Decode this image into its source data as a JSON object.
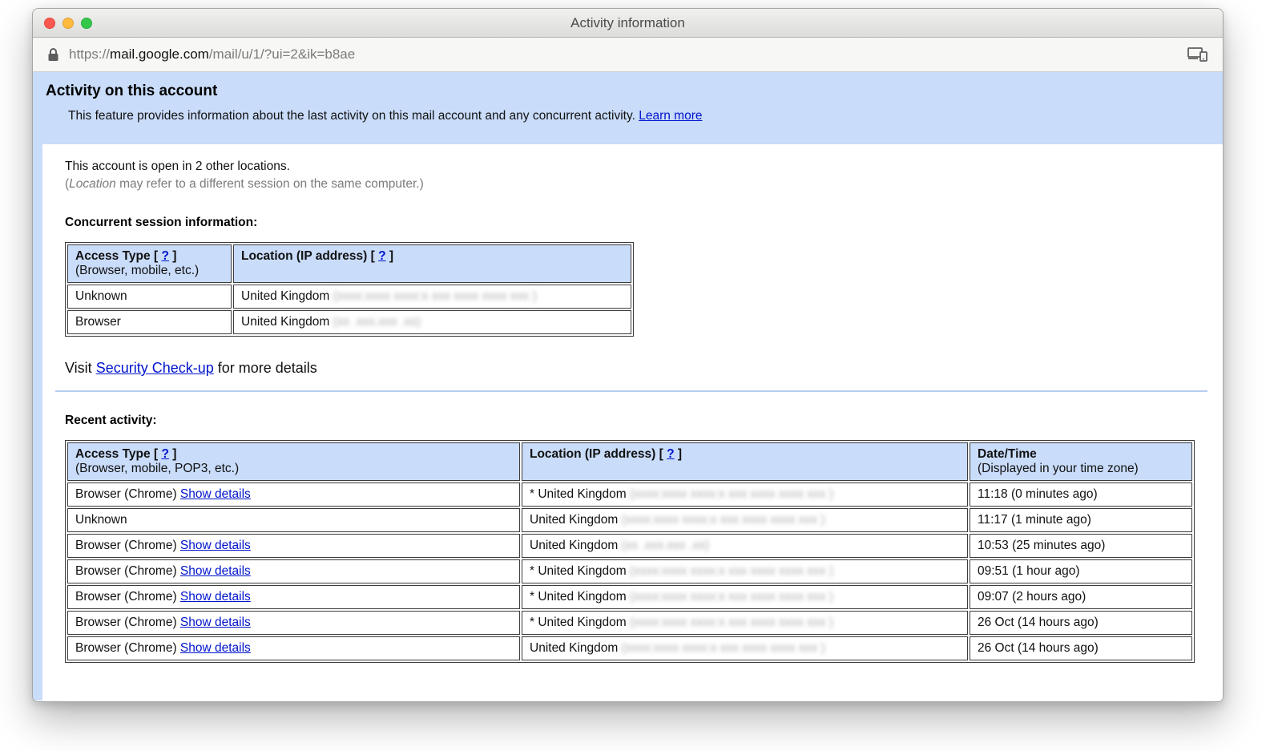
{
  "window": {
    "title": "Activity information"
  },
  "browser": {
    "url_scheme": "https://",
    "url_host": "mail.google.com",
    "url_path": "/mail/u/1/?ui=2&ik=b8ae"
  },
  "header": {
    "title": "Activity on this account",
    "description": "This feature provides information about the last activity on this mail account and any concurrent activity.",
    "learn_more": "Learn more"
  },
  "summary": {
    "line1": "This account is open in 2 other locations.",
    "note_open": "(",
    "note_italic": "Location",
    "note_rest": " may refer to a different session on the same computer.)"
  },
  "concurrent": {
    "heading": "Concurrent session information:",
    "headers": [
      {
        "title": "Access Type",
        "help": "?",
        "sub": "(Browser, mobile, etc.)"
      },
      {
        "title": "Location (IP address)",
        "help": "?"
      }
    ],
    "rows": [
      {
        "access": "Unknown",
        "starred": false,
        "location": "United Kingdom",
        "ip_mask": "long"
      },
      {
        "access": "Browser",
        "starred": false,
        "location": "United Kingdom",
        "ip_mask": "short"
      }
    ]
  },
  "security": {
    "prefix": "Visit ",
    "link_label": "Security Check-up",
    "suffix": " for more details"
  },
  "recent": {
    "heading": "Recent activity:",
    "headers": [
      {
        "title": "Access Type",
        "help": "?",
        "sub": "(Browser, mobile, POP3, etc.)"
      },
      {
        "title": "Location (IP address)",
        "help": "?"
      },
      {
        "title": "Date/Time",
        "sub": "(Displayed in your time zone)"
      }
    ],
    "rows": [
      {
        "access": "Browser (Chrome)",
        "details_link": "Show details",
        "starred": true,
        "location": "United Kingdom",
        "ip_mask": "long",
        "datetime": "11:18 (0 minutes ago)"
      },
      {
        "access": "Unknown",
        "starred": false,
        "location": "United Kingdom",
        "ip_mask": "long",
        "datetime": "11:17 (1 minute ago)"
      },
      {
        "access": "Browser (Chrome)",
        "details_link": "Show details",
        "starred": false,
        "location": "United Kingdom",
        "ip_mask": "short",
        "datetime": "10:53 (25 minutes ago)"
      },
      {
        "access": "Browser (Chrome)",
        "details_link": "Show details",
        "starred": true,
        "location": "United Kingdom",
        "ip_mask": "long",
        "datetime": "09:51 (1 hour ago)"
      },
      {
        "access": "Browser (Chrome)",
        "details_link": "Show details",
        "starred": true,
        "location": "United Kingdom",
        "ip_mask": "long",
        "datetime": "09:07 (2 hours ago)"
      },
      {
        "access": "Browser (Chrome)",
        "details_link": "Show details",
        "starred": true,
        "location": "United Kingdom",
        "ip_mask": "long",
        "datetime": "26 Oct (14 hours ago)"
      },
      {
        "access": "Browser (Chrome)",
        "details_link": "Show details",
        "starred": false,
        "location": "United Kingdom",
        "ip_mask": "long",
        "datetime": "26 Oct (14 hours ago)"
      }
    ]
  },
  "ip_masks": {
    "long": "(xxxx:xxxx  xxxx:x  xxx   xxxx xxxx  xxx )",
    "short": "(xx .xxx.xxx .xx)"
  },
  "ui": {
    "bracket_open": "[",
    "bracket_close": "]",
    "star": "*"
  }
}
